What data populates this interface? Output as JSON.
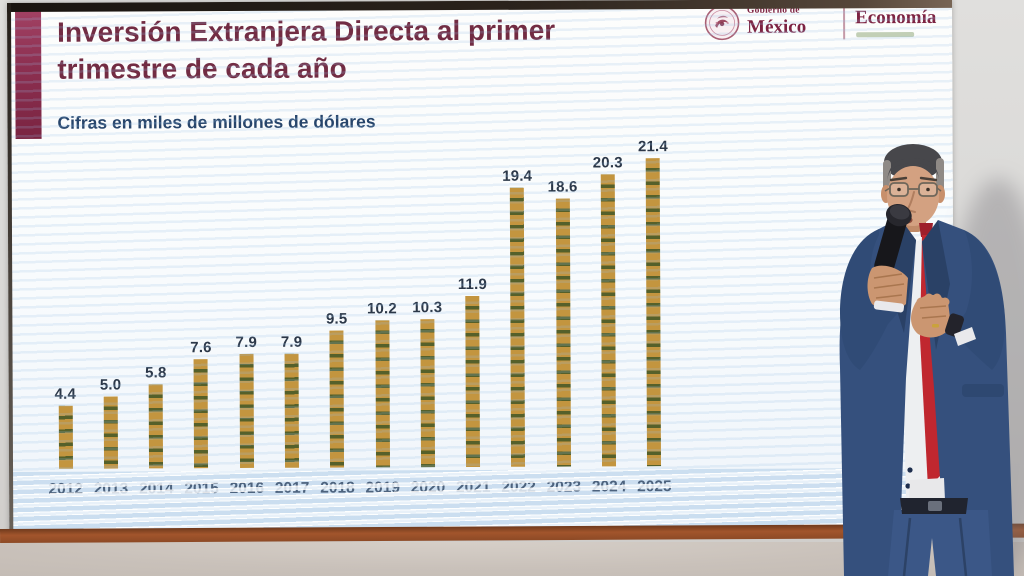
{
  "slide": {
    "title_line1": "Inversión Extranjera Directa al primer",
    "title_line2": "trimestre de cada año",
    "subtitle": "Cifras en miles de millones de dólares"
  },
  "header_logos": {
    "gobierno_small": "Gobierno de",
    "gobierno_large": "México",
    "economia": "Economía"
  },
  "chart_data": {
    "type": "bar",
    "title": "Inversión Extranjera Directa al primer trimestre de cada año",
    "subtitle": "Cifras en miles de millones de dólares",
    "unit": "miles de millones de dólares",
    "categories": [
      "2012",
      "2013",
      "2014",
      "2015",
      "2016",
      "2017",
      "2018",
      "2019",
      "2020",
      "2021",
      "2022",
      "2023",
      "2024",
      "2025"
    ],
    "values": [
      4.4,
      5.0,
      5.8,
      7.6,
      7.9,
      7.9,
      9.5,
      10.2,
      10.3,
      11.9,
      19.4,
      18.6,
      20.3,
      21.4
    ],
    "value_labels": [
      "4.4",
      "5.0",
      "5.8",
      "7.6",
      "7.9",
      "7.9",
      "9.5",
      "10.2",
      "10.3",
      "11.9",
      "19.4",
      "18.6",
      "20.3",
      "21.4"
    ],
    "ylim": [
      0,
      22
    ],
    "grid": false,
    "legend": false,
    "bar_color": "#c3953f",
    "bar_stripe_color": "#55602a",
    "value_label_color": "#2b3748",
    "category_label_color": "#3a4458"
  },
  "colors": {
    "title": "#722c43",
    "subtitle": "#27456b",
    "accent_bar": "#8c2f50",
    "logo_maroon": "#7d2342",
    "screen_frame_bottom": "#96522b",
    "suit_blue": "#35507d",
    "tie_red": "#c0272f"
  }
}
